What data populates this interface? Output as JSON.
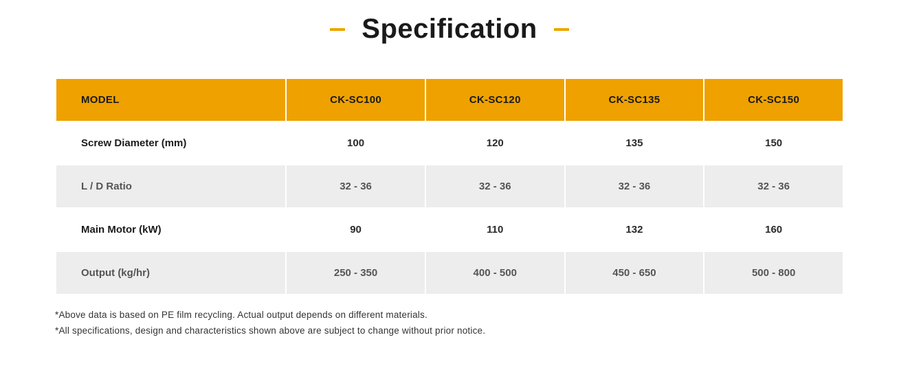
{
  "title": "Specification",
  "accent_color": "#efa100",
  "table": {
    "header_bg": "#efa100",
    "row_even_bg": "#ededed",
    "row_odd_bg": "#ffffff",
    "columns": [
      "MODEL",
      "CK-SC100",
      "CK-SC120",
      "CK-SC135",
      "CK-SC150"
    ],
    "rows": [
      {
        "label": "Screw Diameter (mm)",
        "values": [
          "100",
          "120",
          "135",
          "150"
        ]
      },
      {
        "label": "L / D Ratio",
        "values": [
          "32 - 36",
          "32 - 36",
          "32 - 36",
          "32 - 36"
        ]
      },
      {
        "label": "Main Motor (kW)",
        "values": [
          "90",
          "110",
          "132",
          "160"
        ]
      },
      {
        "label": "Output (kg/hr)",
        "values": [
          "250 - 350",
          "400 - 500",
          "450 - 650",
          "500 - 800"
        ]
      }
    ]
  },
  "notes": [
    "*Above data is based on PE film recycling. Actual output depends on different materials.",
    "*All specifications, design and characteristics shown above are subject to change without prior notice."
  ]
}
